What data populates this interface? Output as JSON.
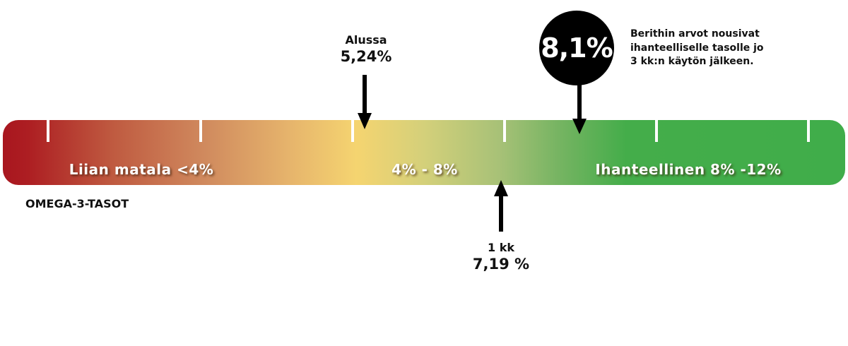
{
  "scale": {
    "title": "OMEGA-3-TASOT",
    "zones": [
      {
        "label": "Liian matala <4%",
        "color": "#a8161f"
      },
      {
        "label": "4% - 8%",
        "color": "#f5d470"
      },
      {
        "label": "Ihanteellinen 8% -12%",
        "color": "#40ad4a"
      }
    ]
  },
  "markers": {
    "start": {
      "label": "Alussa",
      "value_text": "5,24%",
      "value": 5.24
    },
    "one_month": {
      "label": "1 kk",
      "value_text": "7,19 %",
      "value": 7.19
    },
    "three_months": {
      "value_text": "8,1%",
      "value": 8.1
    }
  },
  "note": {
    "lines": [
      "Berithin arvot nousivat",
      "ihanteelliselle tasolle jo",
      "3 kk:n käytön jälkeen."
    ]
  }
}
